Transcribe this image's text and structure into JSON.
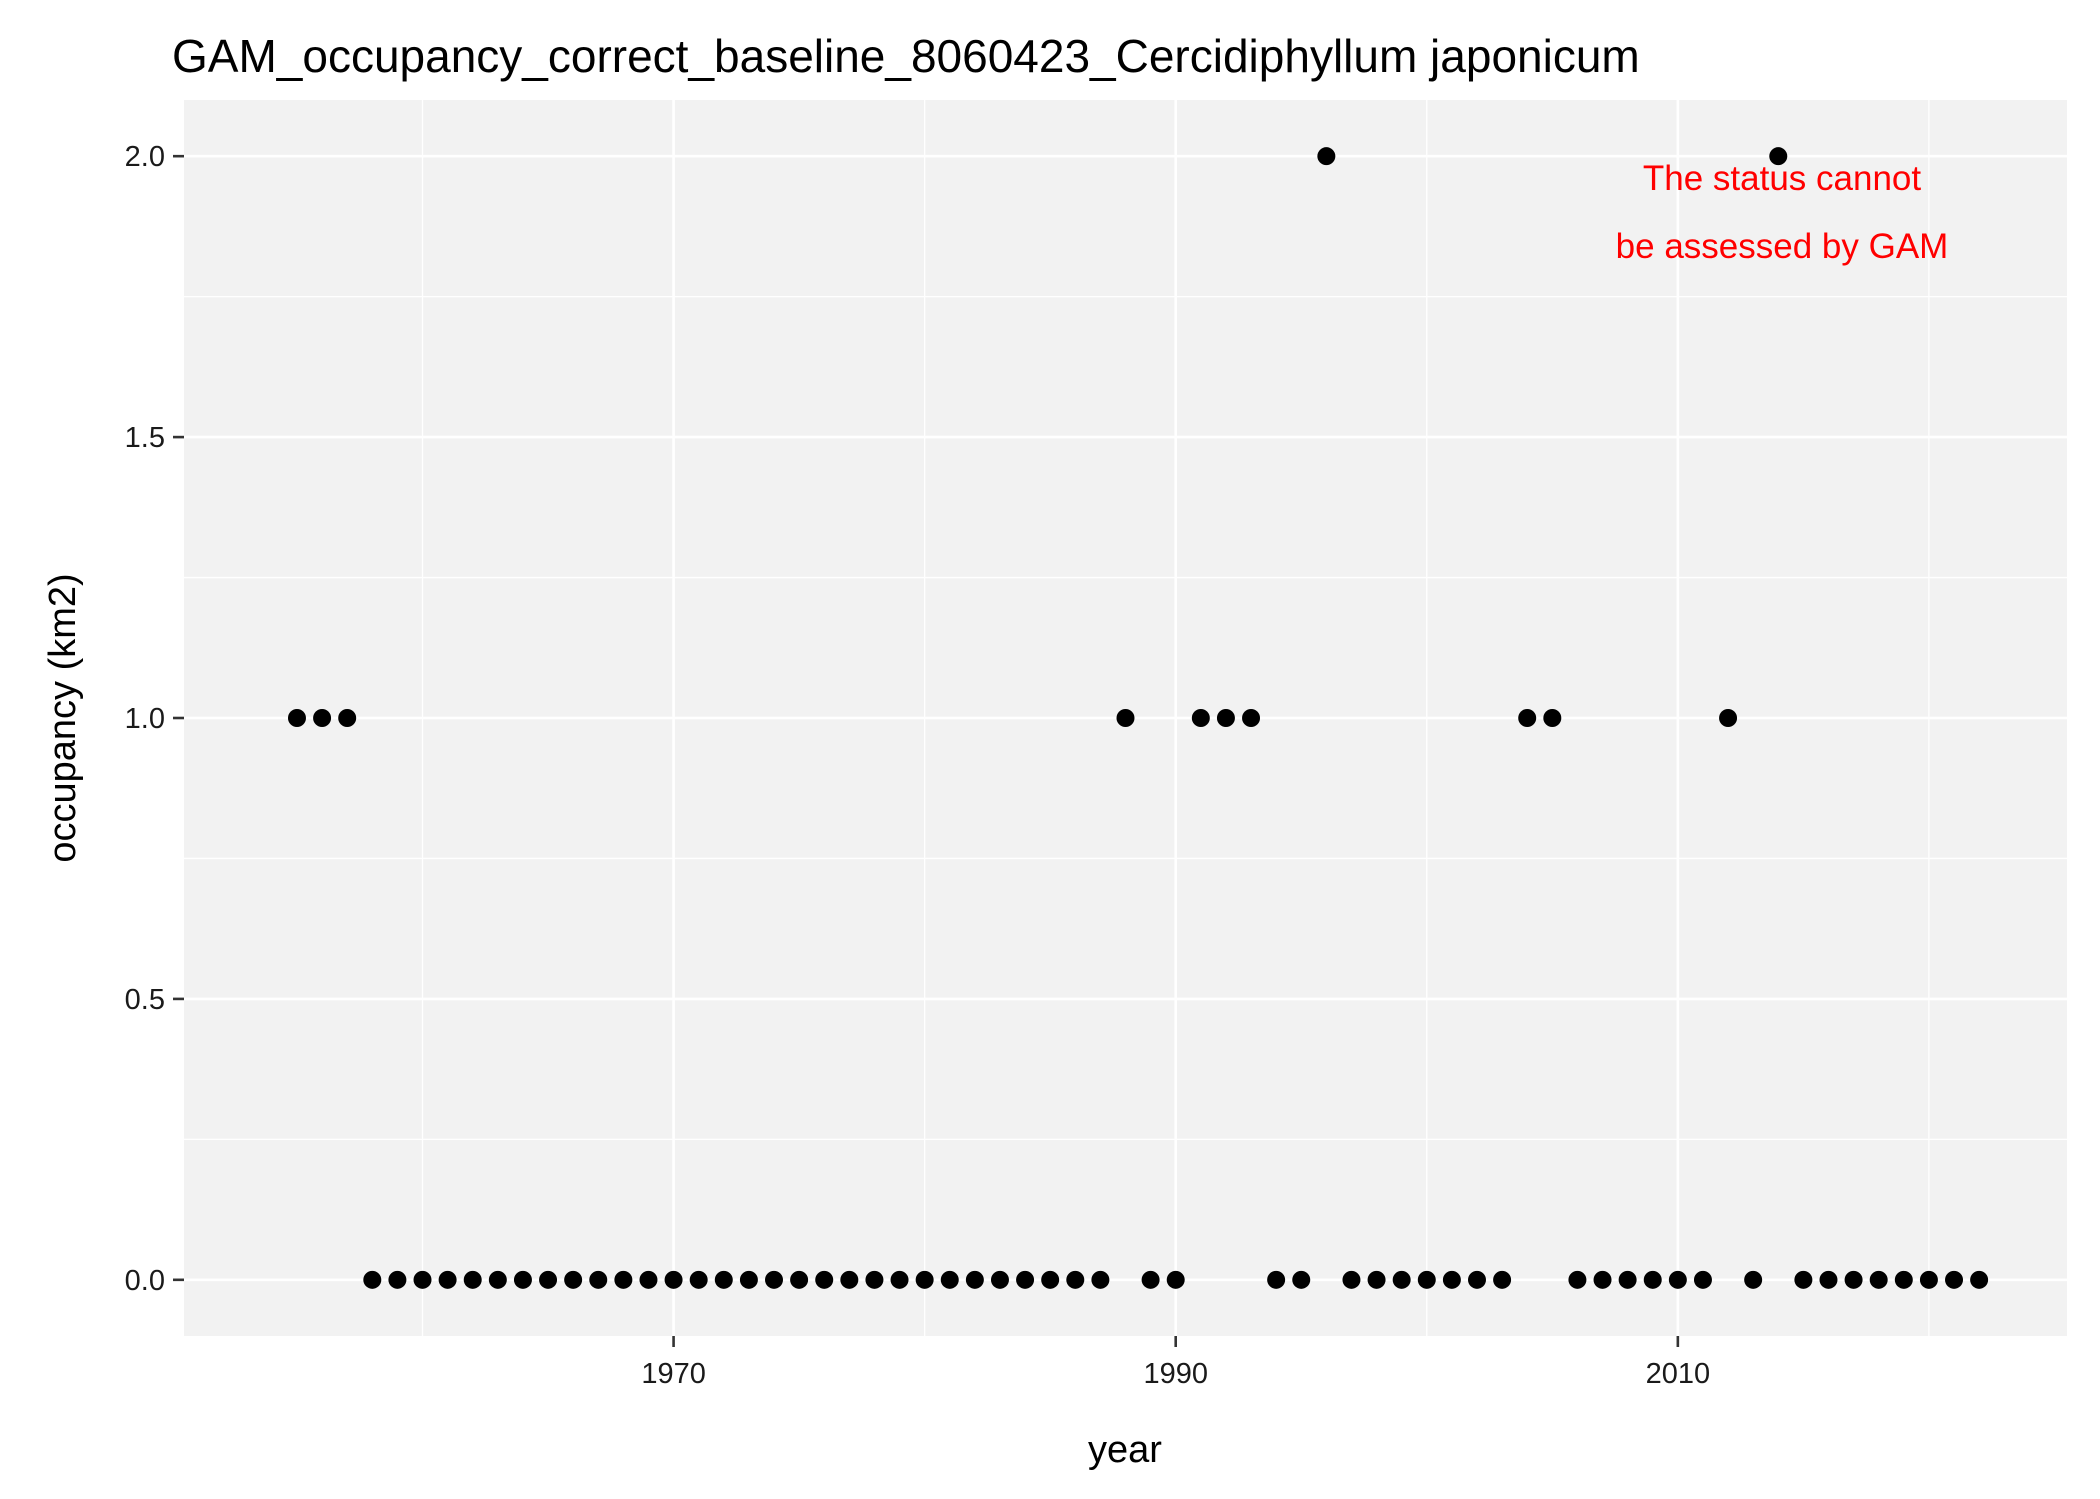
{
  "chart_data": {
    "type": "scatter",
    "title": "GAM_occupancy_correct_baseline_8060423_Cercidiphyllum japonicum",
    "xlabel": "year",
    "ylabel": "occupancy (km2)",
    "xlim": [
      1950.5,
      2025.5
    ],
    "ylim": [
      -0.1,
      2.1
    ],
    "x_ticks": [
      1970,
      1990,
      2010
    ],
    "y_ticks": [
      0.0,
      0.5,
      1.0,
      1.5,
      2.0
    ],
    "x_tick_labels": [
      "1970",
      "1990",
      "2010"
    ],
    "y_tick_labels": [
      "0.0",
      "0.5",
      "1.0",
      "1.5",
      "2.0"
    ],
    "grid": true,
    "annotation": {
      "lines": [
        "The status cannot",
        "be assessed by GAM"
      ],
      "color": "#ff0000",
      "placement": "top-right"
    },
    "series": [
      {
        "x": [
          1955,
          1956,
          1957,
          1958,
          1959,
          1960,
          1961,
          1962,
          1963,
          1964,
          1965,
          1966,
          1967,
          1968,
          1969,
          1970,
          1971,
          1972,
          1973,
          1974,
          1975,
          1976,
          1977,
          1978,
          1979,
          1980,
          1981,
          1982,
          1983,
          1984,
          1985,
          1986,
          1987,
          1988,
          1989,
          1990,
          1991,
          1992,
          1993,
          1994,
          1995,
          1996,
          1997,
          1998,
          1999,
          2000,
          2001,
          2002,
          2003,
          2004,
          2005,
          2006,
          2007,
          2008,
          2009,
          2010,
          2011,
          2012,
          2013,
          2014,
          2015,
          2016,
          2017,
          2018,
          2019,
          2020,
          2021,
          2022
        ],
        "y": [
          1,
          1,
          1,
          0,
          0,
          0,
          0,
          0,
          0,
          0,
          0,
          0,
          0,
          0,
          0,
          0,
          0,
          0,
          0,
          0,
          0,
          0,
          0,
          0,
          0,
          0,
          0,
          0,
          0,
          0,
          0,
          0,
          0,
          1,
          0,
          0,
          1,
          1,
          1,
          0,
          0,
          2,
          0,
          0,
          0,
          0,
          0,
          0,
          0,
          1,
          1,
          0,
          0,
          0,
          0,
          0,
          0,
          1,
          0,
          2,
          0,
          0,
          0,
          0,
          0,
          0,
          0,
          0
        ]
      }
    ]
  }
}
